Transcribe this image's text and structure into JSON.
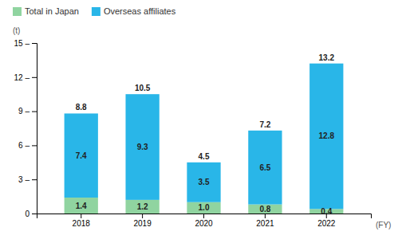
{
  "chart_data": {
    "type": "bar",
    "stacked": true,
    "categories": [
      "2018",
      "2019",
      "2020",
      "2021",
      "2022"
    ],
    "series": [
      {
        "name": "Total in Japan",
        "color": "#90d4a0",
        "values": [
          1.4,
          1.2,
          1.0,
          0.8,
          0.4
        ],
        "value_labels": [
          "1.4",
          "1.2",
          "1.0",
          "0.8",
          "0.4"
        ]
      },
      {
        "name": "Overseas affiliates",
        "color": "#29b6e8",
        "values": [
          7.4,
          9.3,
          3.5,
          6.5,
          12.8
        ]
      }
    ],
    "totals": [
      8.8,
      10.5,
      4.5,
      7.2,
      13.2
    ],
    "xlabel": "(FY)",
    "ylabel": "(t)",
    "ylim": [
      0,
      15
    ],
    "yticks": [
      0,
      {
        "value": 3,
        "label": "3 –"
      },
      {
        "value": 6,
        "label": "6 –"
      },
      {
        "value": 9,
        "label": "9 –"
      },
      {
        "value": 12,
        "label": "12 –"
      },
      {
        "value": 15,
        "label": "15 –"
      }
    ],
    "grid": false,
    "legend": "upper left",
    "data_labels": true
  }
}
